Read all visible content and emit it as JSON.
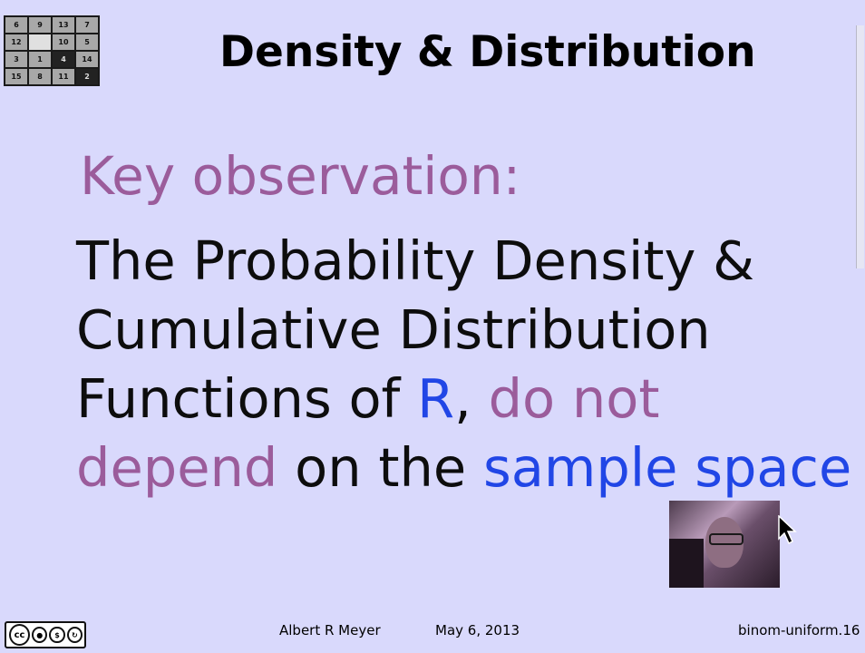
{
  "slide": {
    "title": "Density & Distribution",
    "key_observation": "Key observation:",
    "body": {
      "line1": "The Probability Density &",
      "line2": "Cumulative Distribution",
      "line3_a": "Functions of ",
      "line3_b": "R",
      "line3_c": ", ",
      "line3_d": "do not",
      "line4_a": "depend",
      "line4_b": " on the ",
      "line4_c": "sample space"
    }
  },
  "logo": {
    "cells": [
      "6",
      "9",
      "13",
      "7",
      "12",
      "",
      "10",
      "5",
      "3",
      "1",
      "4",
      "14",
      "15",
      "8",
      "11",
      "2"
    ]
  },
  "footer": {
    "author": "Albert R Meyer",
    "date": "May 6, 2013",
    "slide_id": "binom-uniform.16",
    "license_icons": [
      "cc-icon",
      "by-icon",
      "nc-icon",
      "sa-icon"
    ]
  },
  "colors": {
    "background": "#d9d9fc",
    "purple": "#9b5c9b",
    "blue": "#2146e6",
    "text": "#0d0d0d"
  }
}
